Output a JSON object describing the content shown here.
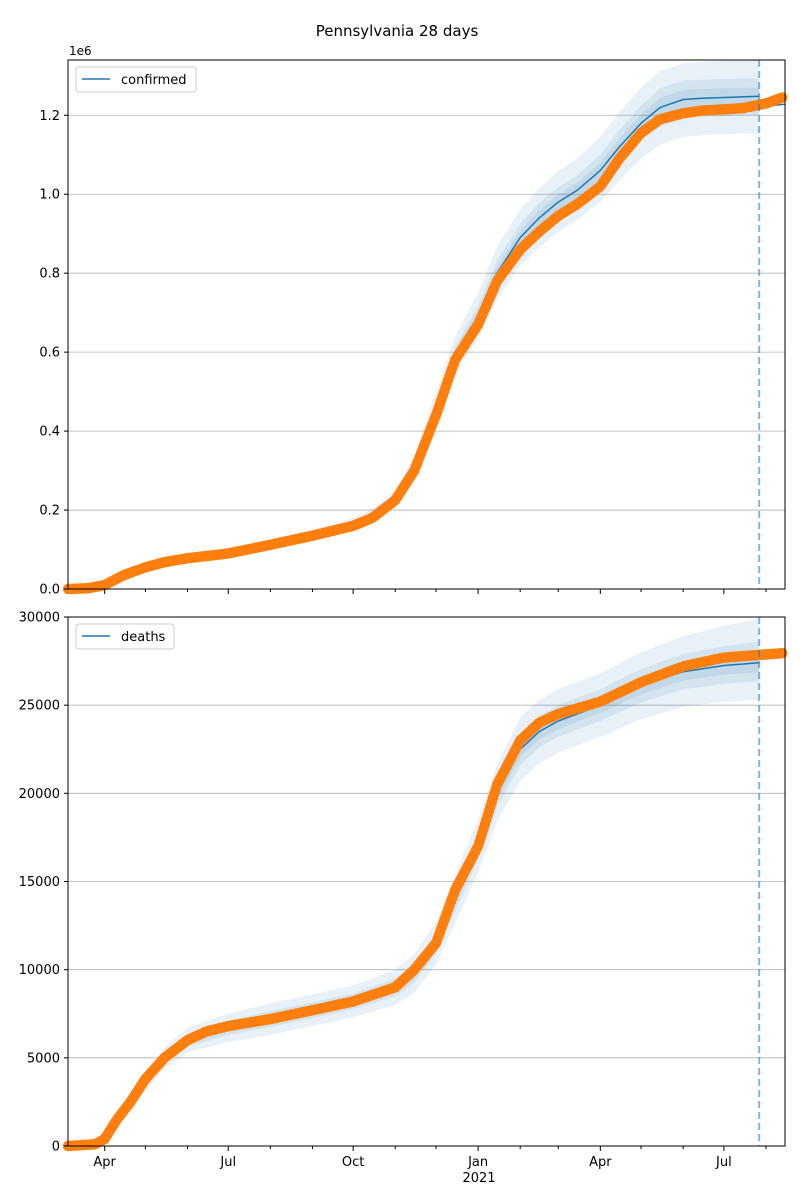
{
  "figure_title": "Pennsylvania 28 days",
  "chart_data": [
    {
      "type": "line",
      "legend": "confirmed",
      "legend_location": "upper-left",
      "offset_label": "1e6",
      "grid": "horizontal",
      "xlim": [
        "2020-03-05",
        "2021-08-15"
      ],
      "ylim": [
        0,
        1340000
      ],
      "y_ticks": [
        0,
        200000,
        400000,
        600000,
        800000,
        1000000,
        1200000
      ],
      "y_tick_labels": [
        "0.0",
        "0.2",
        "0.4",
        "0.6",
        "0.8",
        "1.0",
        "1.2"
      ],
      "forecast_line_date": "2021-07-27",
      "colors": {
        "model": "#1f77b4",
        "observed": "#ff7f0e",
        "forecast_line": "#1f77b4"
      },
      "model_series": {
        "x": [
          "2020-03-05",
          "2020-04-01",
          "2020-05-01",
          "2020-06-01",
          "2020-07-01",
          "2020-08-01",
          "2020-09-01",
          "2020-10-01",
          "2020-10-15",
          "2020-11-01",
          "2020-11-15",
          "2020-12-01",
          "2020-12-15",
          "2021-01-01",
          "2021-01-15",
          "2021-02-01",
          "2021-02-15",
          "2021-03-01",
          "2021-03-15",
          "2021-04-01",
          "2021-04-15",
          "2021-05-01",
          "2021-05-15",
          "2021-06-01",
          "2021-06-15",
          "2021-07-01",
          "2021-07-27"
        ],
        "y": [
          0,
          12000,
          58000,
          79000,
          91000,
          114000,
          138000,
          165000,
          185000,
          230000,
          310000,
          460000,
          590000,
          690000,
          800000,
          890000,
          940000,
          980000,
          1010000,
          1060000,
          1120000,
          1180000,
          1220000,
          1240000,
          1243000,
          1245000,
          1248000
        ]
      },
      "bands": [
        {
          "lower": [
            0,
            10000,
            52000,
            72000,
            83000,
            104000,
            126000,
            151000,
            170000,
            212000,
            285000,
            425000,
            545000,
            635000,
            735000,
            820000,
            865000,
            905000,
            935000,
            980000,
            1035000,
            1090000,
            1125000,
            1145000,
            1150000,
            1152000,
            1155000
          ],
          "upper": [
            0,
            14000,
            64000,
            87000,
            100000,
            125000,
            151000,
            180000,
            202000,
            250000,
            338000,
            500000,
            640000,
            750000,
            868000,
            962000,
            1015000,
            1058000,
            1090000,
            1145000,
            1208000,
            1270000,
            1312000,
            1332000,
            1336000,
            1338000,
            1341000
          ]
        },
        {
          "lower": [
            0,
            11000,
            55000,
            75000,
            87000,
            109000,
            132000,
            158000,
            177000,
            221000,
            297000,
            442000,
            567000,
            662000,
            767000,
            855000,
            902000,
            942000,
            972000,
            1020000,
            1077000,
            1135000,
            1172000,
            1192000,
            1196000,
            1198000,
            1202000
          ],
          "upper": [
            0,
            13000,
            61000,
            83000,
            95000,
            119000,
            144000,
            172000,
            193000,
            239000,
            323000,
            478000,
            613000,
            718000,
            833000,
            925000,
            978000,
            1018000,
            1048000,
            1100000,
            1163000,
            1225000,
            1268000,
            1288000,
            1290000,
            1292000,
            1294000
          ]
        },
        {
          "lower": [
            0,
            11500,
            56500,
            77000,
            89000,
            111500,
            135000,
            161500,
            181000,
            225500,
            303500,
            451000,
            578500,
            676000,
            783500,
            872500,
            921000,
            961000,
            991000,
            1040000,
            1098500,
            1157500,
            1196000,
            1216000,
            1219500,
            1221500,
            1225000
          ],
          "upper": [
            0,
            12500,
            59500,
            81000,
            93000,
            116500,
            141000,
            168500,
            189000,
            234500,
            316500,
            469000,
            601500,
            704000,
            816500,
            907500,
            959000,
            999000,
            1029000,
            1080000,
            1141500,
            1202500,
            1244000,
            1264000,
            1266500,
            1268500,
            1271000
          ]
        }
      ],
      "observed_series": {
        "x": [
          "2020-03-05",
          "2020-03-20",
          "2020-04-01",
          "2020-04-15",
          "2020-05-01",
          "2020-05-15",
          "2020-06-01",
          "2020-07-01",
          "2020-08-01",
          "2020-09-01",
          "2020-10-01",
          "2020-10-15",
          "2020-11-01",
          "2020-11-15",
          "2020-12-01",
          "2020-12-15",
          "2021-01-01",
          "2021-01-15",
          "2021-02-01",
          "2021-02-15",
          "2021-03-01",
          "2021-03-15",
          "2021-04-01",
          "2021-04-15",
          "2021-05-01",
          "2021-05-15",
          "2021-06-01",
          "2021-06-15",
          "2021-07-01",
          "2021-07-15",
          "2021-08-01",
          "2021-08-13"
        ],
        "y": [
          0,
          2000,
          10000,
          35000,
          55000,
          68000,
          78000,
          90000,
          112000,
          135000,
          160000,
          180000,
          225000,
          300000,
          440000,
          580000,
          670000,
          780000,
          860000,
          905000,
          945000,
          975000,
          1020000,
          1090000,
          1155000,
          1190000,
          1205000,
          1212000,
          1215000,
          1218000,
          1230000,
          1245000
        ]
      },
      "model_tail": {
        "x": [
          "2021-07-27",
          "2021-08-15"
        ],
        "y": [
          1222000,
          1228000
        ]
      }
    },
    {
      "type": "line",
      "legend": "deaths",
      "legend_location": "upper-left",
      "grid": "horizontal",
      "xlim": [
        "2020-03-05",
        "2021-08-15"
      ],
      "ylim": [
        0,
        30000
      ],
      "y_ticks": [
        0,
        5000,
        10000,
        15000,
        20000,
        25000,
        30000
      ],
      "y_tick_labels": [
        "0",
        "5000",
        "10000",
        "15000",
        "20000",
        "25000",
        "30000"
      ],
      "x_tick_labels": [
        "Apr",
        "Jul",
        "Oct",
        "Jan",
        "Apr",
        "Jul"
      ],
      "x_tick_dates": [
        "2020-04-01",
        "2020-07-01",
        "2020-10-01",
        "2021-01-01",
        "2021-04-01",
        "2021-07-01"
      ],
      "x_year_label": "2021",
      "forecast_line_date": "2021-07-27",
      "colors": {
        "model": "#1f77b4",
        "observed": "#ff7f0e",
        "forecast_line": "#1f77b4"
      },
      "model_series": {
        "x": [
          "2020-03-05",
          "2020-04-01",
          "2020-04-15",
          "2020-05-01",
          "2020-05-15",
          "2020-06-01",
          "2020-07-01",
          "2020-08-01",
          "2020-09-01",
          "2020-10-01",
          "2020-11-01",
          "2020-11-15",
          "2020-12-01",
          "2020-12-15",
          "2021-01-01",
          "2021-01-15",
          "2021-02-01",
          "2021-02-15",
          "2021-03-01",
          "2021-04-01",
          "2021-05-01",
          "2021-06-01",
          "2021-07-01",
          "2021-07-27"
        ],
        "y": [
          0,
          300,
          1800,
          3600,
          5000,
          6000,
          6700,
          7200,
          7700,
          8200,
          9000,
          9800,
          11500,
          14000,
          17000,
          20000,
          22500,
          23500,
          24100,
          25000,
          26100,
          26900,
          27250,
          27400
        ]
      },
      "bands": [
        {
          "lower": [
            0,
            250,
            1500,
            3100,
            4400,
            5300,
            5900,
            6300,
            6800,
            7300,
            8000,
            8700,
            10300,
            12600,
            15500,
            18400,
            20700,
            21700,
            22300,
            23200,
            24200,
            24900,
            25200,
            25300
          ],
          "upper": [
            0,
            350,
            2100,
            4100,
            5600,
            6700,
            7500,
            8100,
            8600,
            9100,
            10000,
            10900,
            12700,
            15400,
            18500,
            21600,
            24300,
            25300,
            25900,
            26800,
            28000,
            28900,
            29500,
            29900
          ]
        },
        {
          "lower": [
            0,
            280,
            1650,
            3350,
            4700,
            5650,
            6300,
            6750,
            7250,
            7750,
            8500,
            9250,
            10900,
            13300,
            16250,
            19200,
            21600,
            22600,
            23200,
            24100,
            25150,
            25900,
            26200,
            26350
          ],
          "upper": [
            0,
            320,
            1950,
            3850,
            5300,
            6350,
            7100,
            7650,
            8150,
            8650,
            9500,
            10350,
            12100,
            14700,
            17750,
            20800,
            23400,
            24400,
            25000,
            25900,
            27050,
            27900,
            28350,
            28600
          ]
        },
        {
          "lower": [
            0,
            290,
            1720,
            3480,
            4850,
            5820,
            6500,
            6970,
            7470,
            7970,
            8750,
            9520,
            11200,
            13650,
            16620,
            19600,
            22050,
            23050,
            23650,
            24550,
            25620,
            26400,
            26720,
            26870
          ],
          "upper": [
            0,
            310,
            1880,
            3720,
            5150,
            6180,
            6900,
            7430,
            7930,
            8430,
            9250,
            10080,
            11800,
            14350,
            17380,
            20400,
            22950,
            23950,
            24550,
            25450,
            26580,
            27400,
            27780,
            27930
          ]
        }
      ],
      "observed_series": {
        "x": [
          "2020-03-05",
          "2020-03-25",
          "2020-04-01",
          "2020-04-10",
          "2020-04-20",
          "2020-05-01",
          "2020-05-15",
          "2020-06-01",
          "2020-06-15",
          "2020-07-01",
          "2020-08-01",
          "2020-09-01",
          "2020-10-01",
          "2020-11-01",
          "2020-11-15",
          "2020-12-01",
          "2020-12-15",
          "2021-01-01",
          "2021-01-15",
          "2021-02-01",
          "2021-02-15",
          "2021-03-01",
          "2021-04-01",
          "2021-05-01",
          "2021-06-01",
          "2021-07-01",
          "2021-07-27",
          "2021-08-13"
        ],
        "y": [
          0,
          100,
          400,
          1500,
          2500,
          3800,
          5000,
          6000,
          6500,
          6800,
          7200,
          7700,
          8200,
          9000,
          10000,
          11500,
          14500,
          17000,
          20500,
          23000,
          24000,
          24500,
          25200,
          26300,
          27200,
          27700,
          27850,
          27950
        ]
      }
    }
  ]
}
